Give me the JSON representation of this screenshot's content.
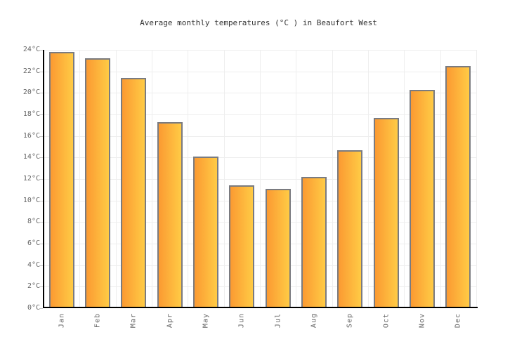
{
  "chart_data": {
    "type": "bar",
    "title": "Average monthly temperatures (°C ) in Beaufort West",
    "categories": [
      "Jan",
      "Feb",
      "Mar",
      "Apr",
      "May",
      "Jun",
      "Jul",
      "Aug",
      "Sep",
      "Oct",
      "Nov",
      "Dec"
    ],
    "values": [
      23.8,
      23.2,
      21.4,
      17.3,
      14.1,
      11.4,
      11.1,
      12.2,
      14.7,
      17.7,
      20.3,
      22.5
    ],
    "unit": "°C",
    "xlabel": "",
    "ylabel": "",
    "ylim": [
      0,
      24
    ],
    "ytick_step": 2,
    "ytick_labels": [
      "0°C",
      "2°C",
      "4°C",
      "6°C",
      "8°C",
      "10°C",
      "12°C",
      "14°C",
      "16°C",
      "18°C",
      "20°C",
      "22°C",
      "24°C"
    ],
    "grid": "horizontal and vertical light gridlines",
    "legend": "none",
    "colors": {
      "bar_gradient_left": "#FB9A32",
      "bar_gradient_right": "#FFCB45",
      "bar_border": "#7A7B80",
      "gridline": "#EEEEEE",
      "axis_line": "#000000",
      "tick": "#C6C6C6",
      "axis_label": "#666666",
      "title_text": "#333333",
      "background": "#FFFFFF"
    }
  }
}
